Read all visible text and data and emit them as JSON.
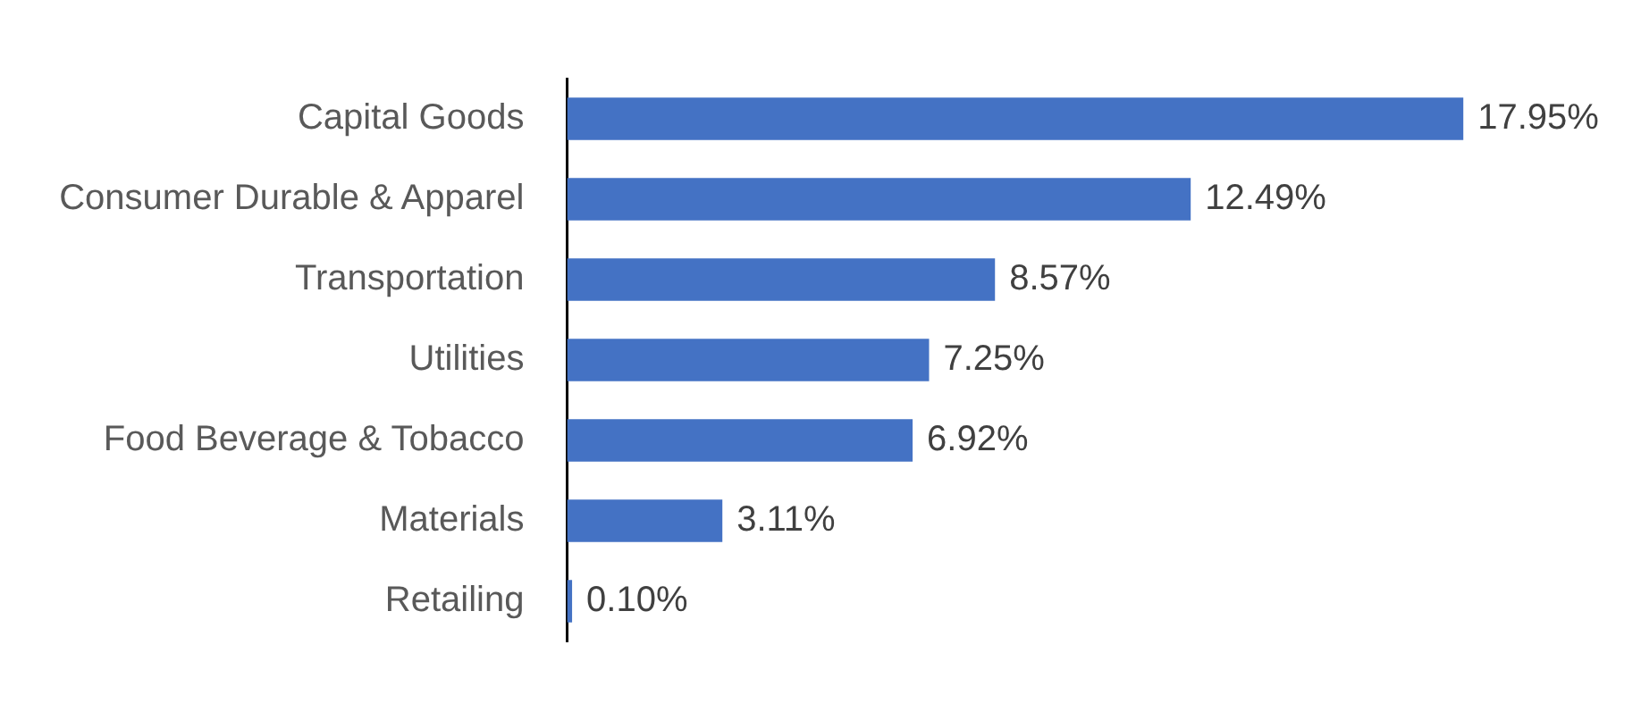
{
  "chart_data": {
    "type": "bar",
    "orientation": "horizontal",
    "categories": [
      "Capital Goods",
      "Consumer Durable & Apparel",
      "Transportation",
      "Utilities",
      "Food Beverage & Tobacco",
      "Materials",
      "Retailing"
    ],
    "values": [
      17.95,
      12.49,
      8.57,
      7.25,
      6.92,
      3.11,
      0.1
    ],
    "value_labels": [
      "17.95%",
      "12.49%",
      "8.57%",
      "7.25%",
      "6.92%",
      "3.11%",
      "0.10%"
    ],
    "color": "#4472c4"
  }
}
